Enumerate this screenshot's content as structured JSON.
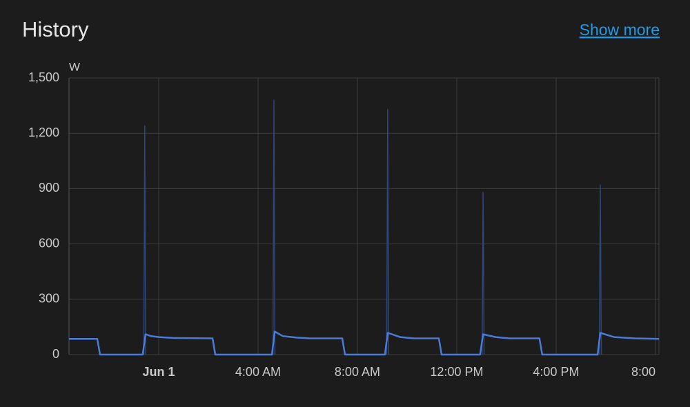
{
  "header": {
    "title": "History",
    "link": "Show more"
  },
  "chart_data": {
    "type": "line",
    "y_label": "W",
    "series": [
      {
        "color": "#4a7bd8",
        "x": [
          -3.61,
          -2.47,
          -2.36,
          -0.64,
          -0.53,
          -0.3,
          0,
          0.56,
          2.17,
          2.28,
          4.56,
          4.67,
          5,
          5.56,
          6.1,
          7.39,
          7.5,
          9.11,
          9.22,
          9.72,
          10.28,
          11.28,
          11.39,
          12.94,
          13.06,
          13.56,
          14.11,
          15.33,
          15.44,
          17.67,
          17.78,
          18.33,
          19.17,
          20.14
        ],
        "values": [
          85,
          85,
          0,
          0,
          110,
          100,
          95,
          90,
          88,
          0,
          0,
          125,
          100,
          92,
          88,
          88,
          0,
          0,
          118,
          95,
          88,
          88,
          0,
          0,
          110,
          95,
          88,
          88,
          0,
          0,
          118,
          95,
          88,
          85
        ]
      },
      {
        "color": "#2f4679",
        "x": [
          -0.6,
          -0.56,
          -0.52,
          null,
          4.6,
          4.64,
          4.68,
          null,
          9.18,
          9.22,
          9.26,
          null,
          13.02,
          13.06,
          13.1,
          null,
          17.74,
          17.78,
          17.82
        ],
        "values": [
          0,
          1240,
          0,
          null,
          0,
          1380,
          0,
          null,
          0,
          1330,
          0,
          null,
          0,
          880,
          0,
          null,
          0,
          920,
          0
        ]
      }
    ],
    "xlim": [
      -3.61,
      20.14
    ],
    "xticks": [
      {
        "value": 0,
        "label": "Jun 1"
      },
      {
        "value": 4,
        "label": "4:00 AM"
      },
      {
        "value": 8,
        "label": "8:00 AM"
      },
      {
        "value": 12,
        "label": "12:00 PM"
      },
      {
        "value": 16,
        "label": "4:00 PM"
      },
      {
        "value": 20,
        "label": "8:00"
      }
    ],
    "ylim": [
      0,
      1500
    ],
    "yticks": [
      0,
      300,
      600,
      900,
      {
        "value": 1200,
        "label": "1,200"
      },
      {
        "value": 1500,
        "label": "1,500"
      }
    ],
    "grid": true
  }
}
